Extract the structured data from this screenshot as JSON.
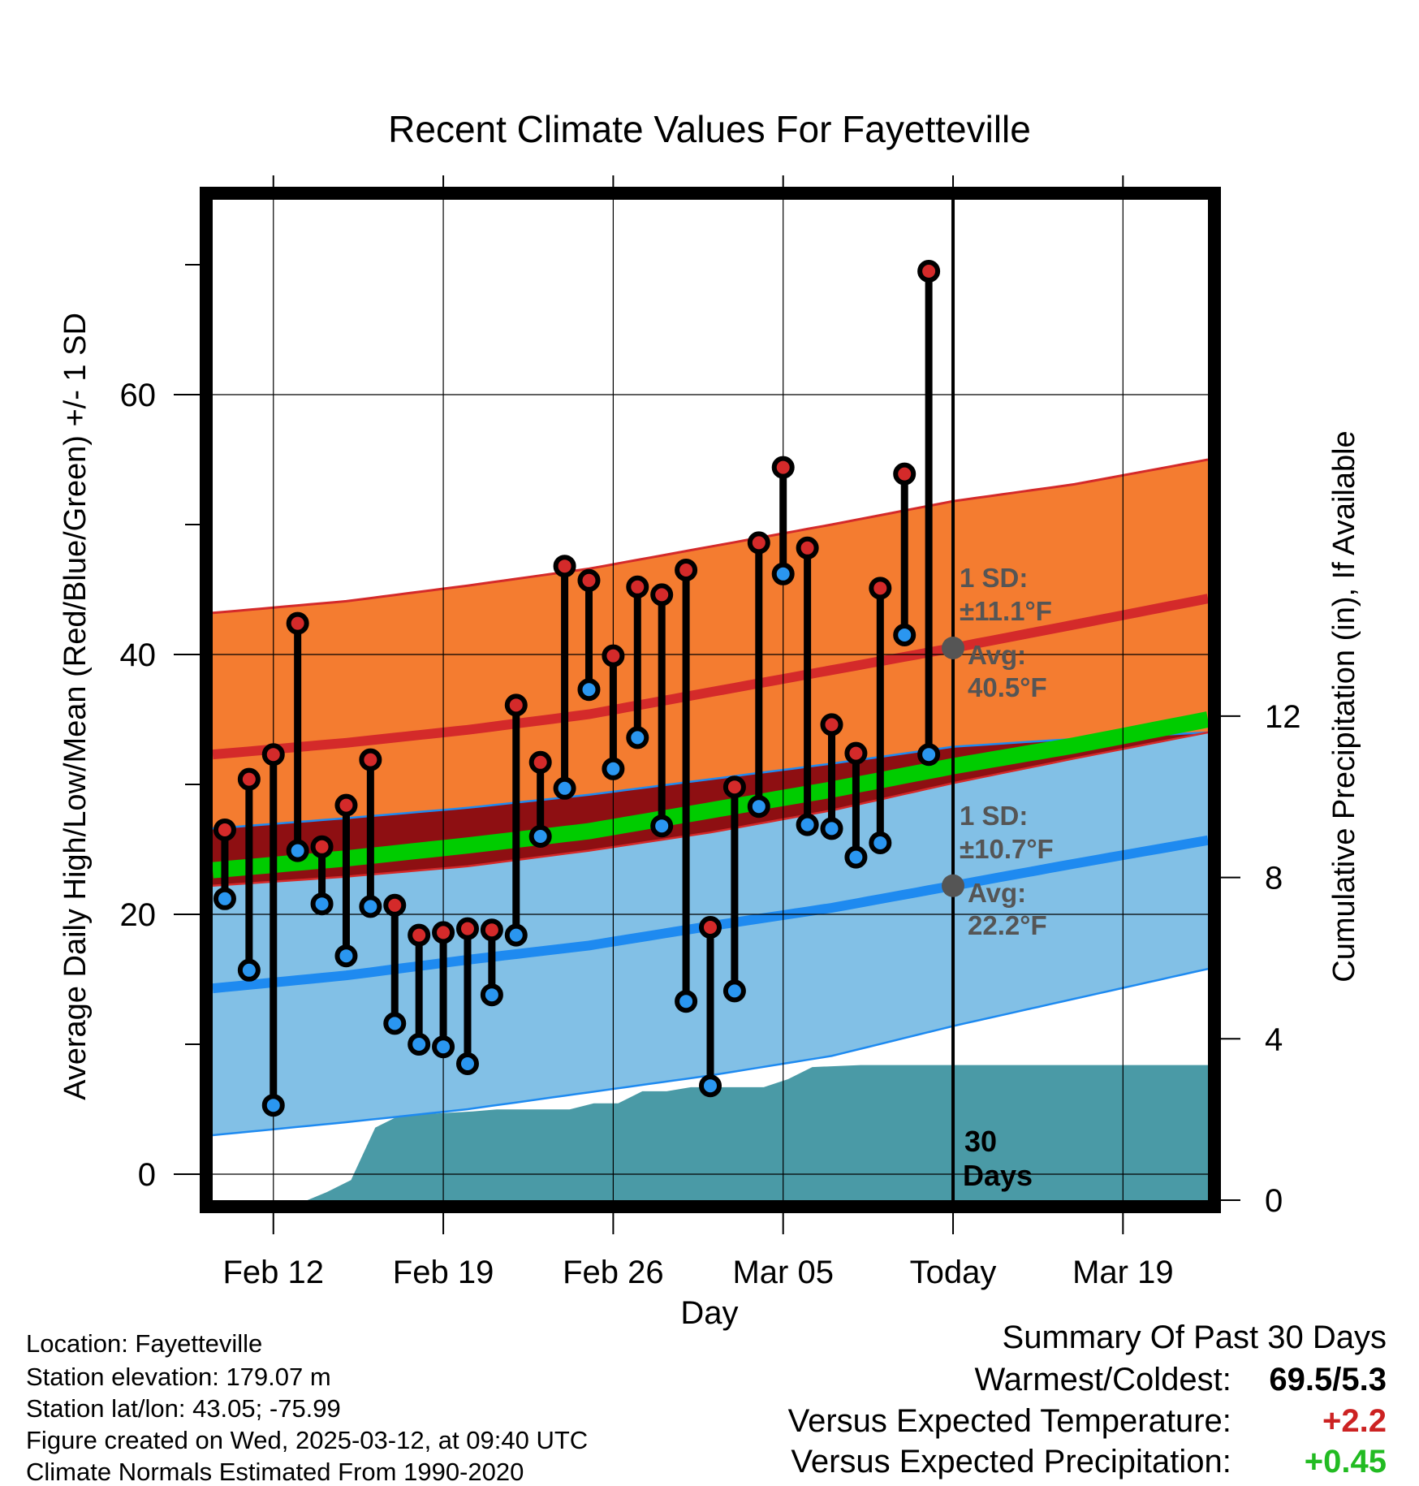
{
  "chart_data": {
    "type": "line",
    "title": "Recent Climate Values For Fayetteville",
    "xlabel": "Day",
    "ylabel": "Average Daily High/Low/Mean (Red/Blue/Green) +/- 1 SD",
    "y2label": "Cumulative Precipitation (in), If Available",
    "x_tick_labels": [
      "Feb 12",
      "Feb 19",
      "Feb 26",
      "Mar 05",
      "Today",
      "Mar 19"
    ],
    "x_tick_days": [
      2,
      9,
      16,
      23,
      30,
      37
    ],
    "x_range_days": [
      -0.5,
      40.5
    ],
    "ylim": [
      -2,
      75
    ],
    "y_ticks": [
      0,
      20,
      40,
      60
    ],
    "y_minor_ticks": [
      10,
      30,
      50,
      70
    ],
    "y2lim": [
      0,
      24.8
    ],
    "y2_ticks": [
      0,
      4,
      8,
      12
    ],
    "today_day": 30,
    "today_label": "30\nDays",
    "normals": {
      "high_mean": [
        [
          -0.5,
          32.3
        ],
        [
          5,
          33.2
        ],
        [
          10,
          34.2
        ],
        [
          15,
          35.4
        ],
        [
          20,
          37.1
        ],
        [
          25,
          38.8
        ],
        [
          30,
          40.5
        ],
        [
          35,
          42.3
        ],
        [
          40.5,
          44.3
        ]
      ],
      "high_sd_upper": [
        [
          -0.5,
          43.2
        ],
        [
          5,
          44.1
        ],
        [
          10,
          45.3
        ],
        [
          15,
          46.6
        ],
        [
          20,
          48.3
        ],
        [
          25,
          50.0
        ],
        [
          30,
          51.8
        ],
        [
          35,
          53.1
        ],
        [
          40.5,
          55.0
        ]
      ],
      "high_sd_lower": [
        [
          -0.5,
          22.2
        ],
        [
          5,
          22.9
        ],
        [
          10,
          23.7
        ],
        [
          15,
          24.9
        ],
        [
          20,
          26.3
        ],
        [
          25,
          28.0
        ],
        [
          30,
          30.1
        ],
        [
          35,
          32.0
        ],
        [
          40.5,
          34.0
        ]
      ],
      "mean_line": [
        [
          -0.5,
          23.4
        ],
        [
          5,
          24.3
        ],
        [
          10,
          25.3
        ],
        [
          15,
          26.4
        ],
        [
          20,
          28.0
        ],
        [
          25,
          29.6
        ],
        [
          30,
          31.4
        ],
        [
          35,
          33.0
        ],
        [
          40.5,
          35.0
        ]
      ],
      "low_mean": [
        [
          -0.5,
          14.3
        ],
        [
          5,
          15.3
        ],
        [
          10,
          16.5
        ],
        [
          15,
          17.6
        ],
        [
          20,
          19.1
        ],
        [
          25,
          20.5
        ],
        [
          30,
          22.2
        ],
        [
          35,
          23.9
        ],
        [
          40.5,
          25.7
        ]
      ],
      "low_sd_upper": [
        [
          -0.5,
          26.6
        ],
        [
          5,
          27.4
        ],
        [
          10,
          28.2
        ],
        [
          15,
          29.2
        ],
        [
          20,
          30.4
        ],
        [
          25,
          31.6
        ],
        [
          30,
          32.9
        ],
        [
          35,
          33.5
        ],
        [
          40.5,
          34.0
        ]
      ],
      "low_sd_lower": [
        [
          -0.5,
          3.0
        ],
        [
          5,
          4.0
        ],
        [
          10,
          5.0
        ],
        [
          15,
          6.3
        ],
        [
          20,
          7.6
        ],
        [
          25,
          9.1
        ],
        [
          30,
          11.4
        ],
        [
          35,
          13.5
        ],
        [
          40.5,
          15.8
        ]
      ]
    },
    "daily": [
      {
        "day": 0,
        "high": 26.5,
        "low": 21.2
      },
      {
        "day": 1,
        "high": 30.4,
        "low": 15.7
      },
      {
        "day": 2,
        "high": 32.3,
        "low": 5.3
      },
      {
        "day": 3,
        "high": 42.4,
        "low": 24.9
      },
      {
        "day": 4,
        "high": 25.2,
        "low": 20.8
      },
      {
        "day": 5,
        "high": 28.4,
        "low": 16.8
      },
      {
        "day": 6,
        "high": 31.9,
        "low": 20.6
      },
      {
        "day": 7,
        "high": 20.7,
        "low": 11.6
      },
      {
        "day": 8,
        "high": 18.4,
        "low": 10.0
      },
      {
        "day": 9,
        "high": 18.6,
        "low": 9.8
      },
      {
        "day": 10,
        "high": 18.9,
        "low": 8.5
      },
      {
        "day": 11,
        "high": 18.8,
        "low": 13.8
      },
      {
        "day": 12,
        "high": 36.1,
        "low": 18.4
      },
      {
        "day": 13,
        "high": 31.7,
        "low": 26.0
      },
      {
        "day": 14,
        "high": 46.8,
        "low": 29.7
      },
      {
        "day": 15,
        "high": 45.7,
        "low": 37.3
      },
      {
        "day": 16,
        "high": 39.9,
        "low": 31.2
      },
      {
        "day": 17,
        "high": 45.2,
        "low": 33.6
      },
      {
        "day": 18,
        "high": 44.6,
        "low": 26.8
      },
      {
        "day": 19,
        "high": 46.5,
        "low": 13.3
      },
      {
        "day": 20,
        "high": 19.0,
        "low": 6.8
      },
      {
        "day": 21,
        "high": 29.8,
        "low": 14.1
      },
      {
        "day": 22,
        "high": 48.6,
        "low": 28.3
      },
      {
        "day": 23,
        "high": 54.4,
        "low": 46.2
      },
      {
        "day": 24,
        "high": 48.2,
        "low": 26.9
      },
      {
        "day": 25,
        "high": 34.6,
        "low": 26.6
      },
      {
        "day": 26,
        "high": 32.4,
        "low": 24.4
      },
      {
        "day": 27,
        "high": 45.1,
        "low": 25.5
      },
      {
        "day": 28,
        "high": 53.9,
        "low": 41.5
      },
      {
        "day": 29,
        "high": 69.5,
        "low": 32.3
      }
    ],
    "precip_cumulative": [
      [
        3.4,
        0
      ],
      [
        4.2,
        0.2
      ],
      [
        5.2,
        0.5
      ],
      [
        6.2,
        1.8
      ],
      [
        7.2,
        2.1
      ],
      [
        10.2,
        2.2
      ],
      [
        11.2,
        2.25
      ],
      [
        14.2,
        2.25
      ],
      [
        15.2,
        2.4
      ],
      [
        16.2,
        2.4
      ],
      [
        17.2,
        2.7
      ],
      [
        18.2,
        2.7
      ],
      [
        19.2,
        2.8
      ],
      [
        22.2,
        2.8
      ],
      [
        23.2,
        3.0
      ],
      [
        24.2,
        3.3
      ],
      [
        26.2,
        3.35
      ],
      [
        40.5,
        3.35
      ]
    ],
    "annotations": {
      "high_sd_text": "1 SD:",
      "high_sd_value": "±11.1°F",
      "high_avg_text": "Avg:",
      "high_avg_value": "40.5°F",
      "low_sd_text": "1 SD:",
      "low_sd_value": "±10.7°F",
      "low_avg_text": "Avg:",
      "low_avg_value": "22.2°F"
    },
    "colors": {
      "high_band": "#f47c30",
      "high_line": "#d42a2a",
      "low_band": "#82c0e6",
      "low_line": "#1e8af0",
      "overlap_band": "#8e0f12",
      "mean_line": "#00cc00",
      "precip": "#4a9aa6",
      "high_marker": "#d42a2a",
      "low_marker": "#2a96f0",
      "annotation_text": "#555555"
    }
  },
  "info": {
    "location": "Location: Fayetteville",
    "elevation": "Station elevation: 179.07 m",
    "latlon": "Station lat/lon: 43.05; -75.99",
    "created": "Figure created on Wed, 2025-03-12, at 09:40 UTC",
    "normals": "Climate Normals Estimated From 1990-2020"
  },
  "summary": {
    "title": "Summary Of Past 30 Days",
    "warmest_coldest_label": "Warmest/Coldest:",
    "warmest_coldest_value": "69.5/5.3",
    "temp_label": "Versus Expected Temperature:",
    "temp_value": "+2.2",
    "temp_color": "#cc2222",
    "precip_label": "Versus Expected Precipitation:",
    "precip_value": "+0.45",
    "precip_color": "#22bb22"
  }
}
